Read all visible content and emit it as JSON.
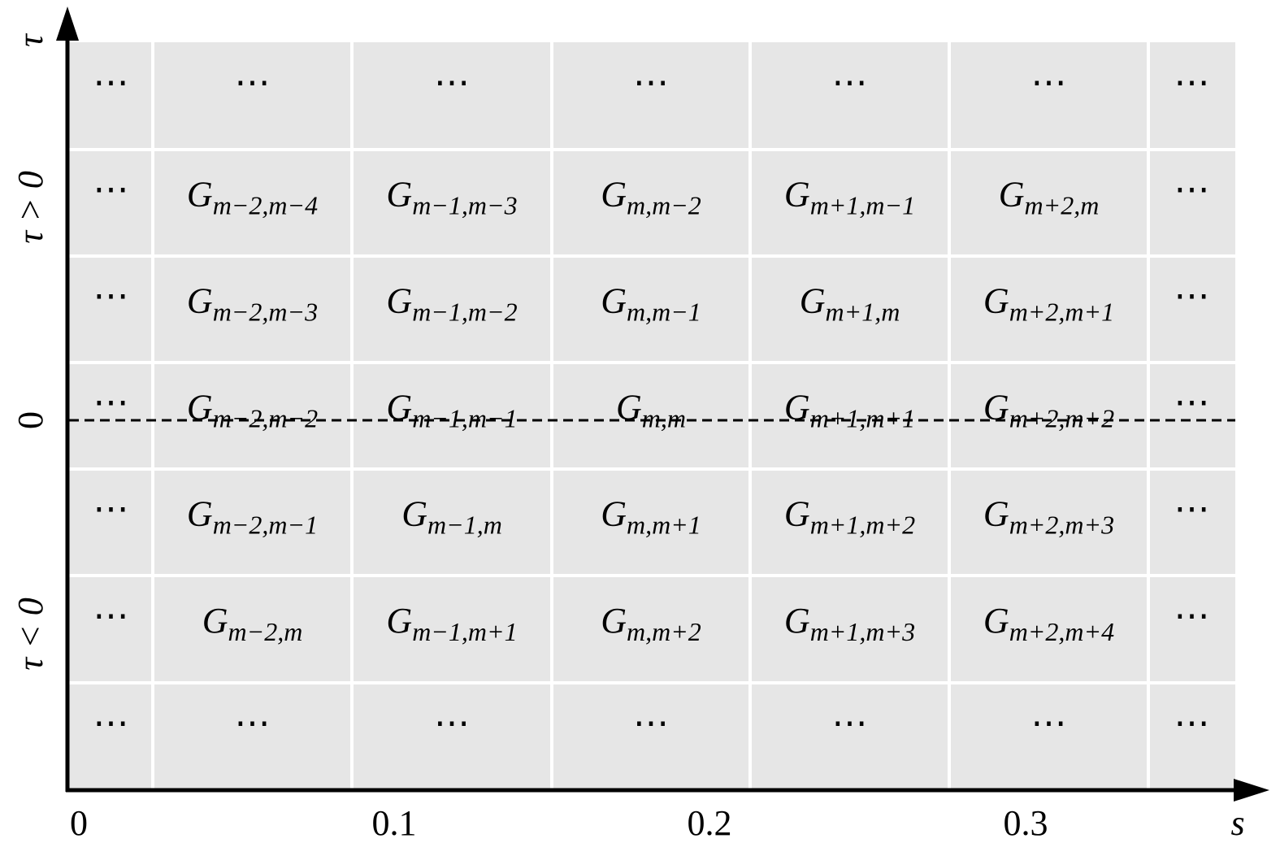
{
  "y_axis": {
    "labels": [
      "τ",
      "τ > 0",
      "0",
      "τ < 0"
    ]
  },
  "x_axis": {
    "labels": [
      "0",
      "0.1",
      "0.2",
      "0.3"
    ],
    "title": "s"
  },
  "grid": {
    "rows": [
      [
        "⋯",
        "⋯",
        "⋯",
        "⋯",
        "⋯",
        "⋯",
        "⋯"
      ],
      [
        "⋯",
        {
          "symbol": "G",
          "subscript": "m−2,m−4"
        },
        {
          "symbol": "G",
          "subscript": "m−1,m−3"
        },
        {
          "symbol": "G",
          "subscript": "m,m−2"
        },
        {
          "symbol": "G",
          "subscript": "m+1,m−1"
        },
        {
          "symbol": "G",
          "subscript": "m+2,m"
        },
        "⋯"
      ],
      [
        "⋯",
        {
          "symbol": "G",
          "subscript": "m−2,m−3"
        },
        {
          "symbol": "G",
          "subscript": "m−1,m−2"
        },
        {
          "symbol": "G",
          "subscript": "m,m−1"
        },
        {
          "symbol": "G",
          "subscript": "m+1,m"
        },
        {
          "symbol": "G",
          "subscript": "m+2,m+1"
        },
        "⋯"
      ],
      [
        "⋯",
        {
          "symbol": "G",
          "subscript": "m−2,m−2"
        },
        {
          "symbol": "G",
          "subscript": "m−1,m−1"
        },
        {
          "symbol": "G",
          "subscript": "m,m"
        },
        {
          "symbol": "G",
          "subscript": "m+1,m+1"
        },
        {
          "symbol": "G",
          "subscript": "m+2,m+2"
        },
        "⋯"
      ],
      [
        "⋯",
        {
          "symbol": "G",
          "subscript": "m−2,m−1"
        },
        {
          "symbol": "G",
          "subscript": "m−1,m"
        },
        {
          "symbol": "G",
          "subscript": "m,m+1"
        },
        {
          "symbol": "G",
          "subscript": "m+1,m+2"
        },
        {
          "symbol": "G",
          "subscript": "m+2,m+3"
        },
        "⋯"
      ],
      [
        "⋯",
        {
          "symbol": "G",
          "subscript": "m−2,m"
        },
        {
          "symbol": "G",
          "subscript": "m−1,m+1"
        },
        {
          "symbol": "G",
          "subscript": "m,m+2"
        },
        {
          "symbol": "G",
          "subscript": "m+1,m+3"
        },
        {
          "symbol": "G",
          "subscript": "m+2,m+4"
        },
        "⋯"
      ],
      [
        "⋯",
        "⋯",
        "⋯",
        "⋯",
        "⋯",
        "⋯",
        "⋯"
      ]
    ]
  }
}
